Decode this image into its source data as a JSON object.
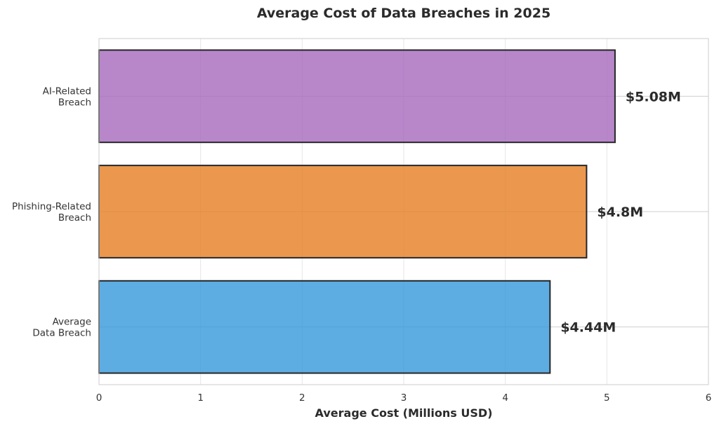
{
  "chart_data": {
    "type": "bar",
    "orientation": "horizontal",
    "title": "Average Cost of Data Breaches in 2025",
    "xlabel": "Average Cost (Millions USD)",
    "ylabel": "",
    "xlim": [
      0,
      6
    ],
    "xticks": [
      0,
      1,
      2,
      3,
      4,
      5,
      6
    ],
    "grid": true,
    "categories": [
      [
        "AI-Related",
        "Breach"
      ],
      [
        "Phishing-Related",
        "Breach"
      ],
      [
        "Average",
        "Data Breach"
      ]
    ],
    "values": [
      5.08,
      4.8,
      4.44
    ],
    "value_labels": [
      "$5.08M",
      "$4.8M",
      "$4.44M"
    ],
    "colors": [
      "#a569bd",
      "#e67e22",
      "#3498db"
    ]
  }
}
